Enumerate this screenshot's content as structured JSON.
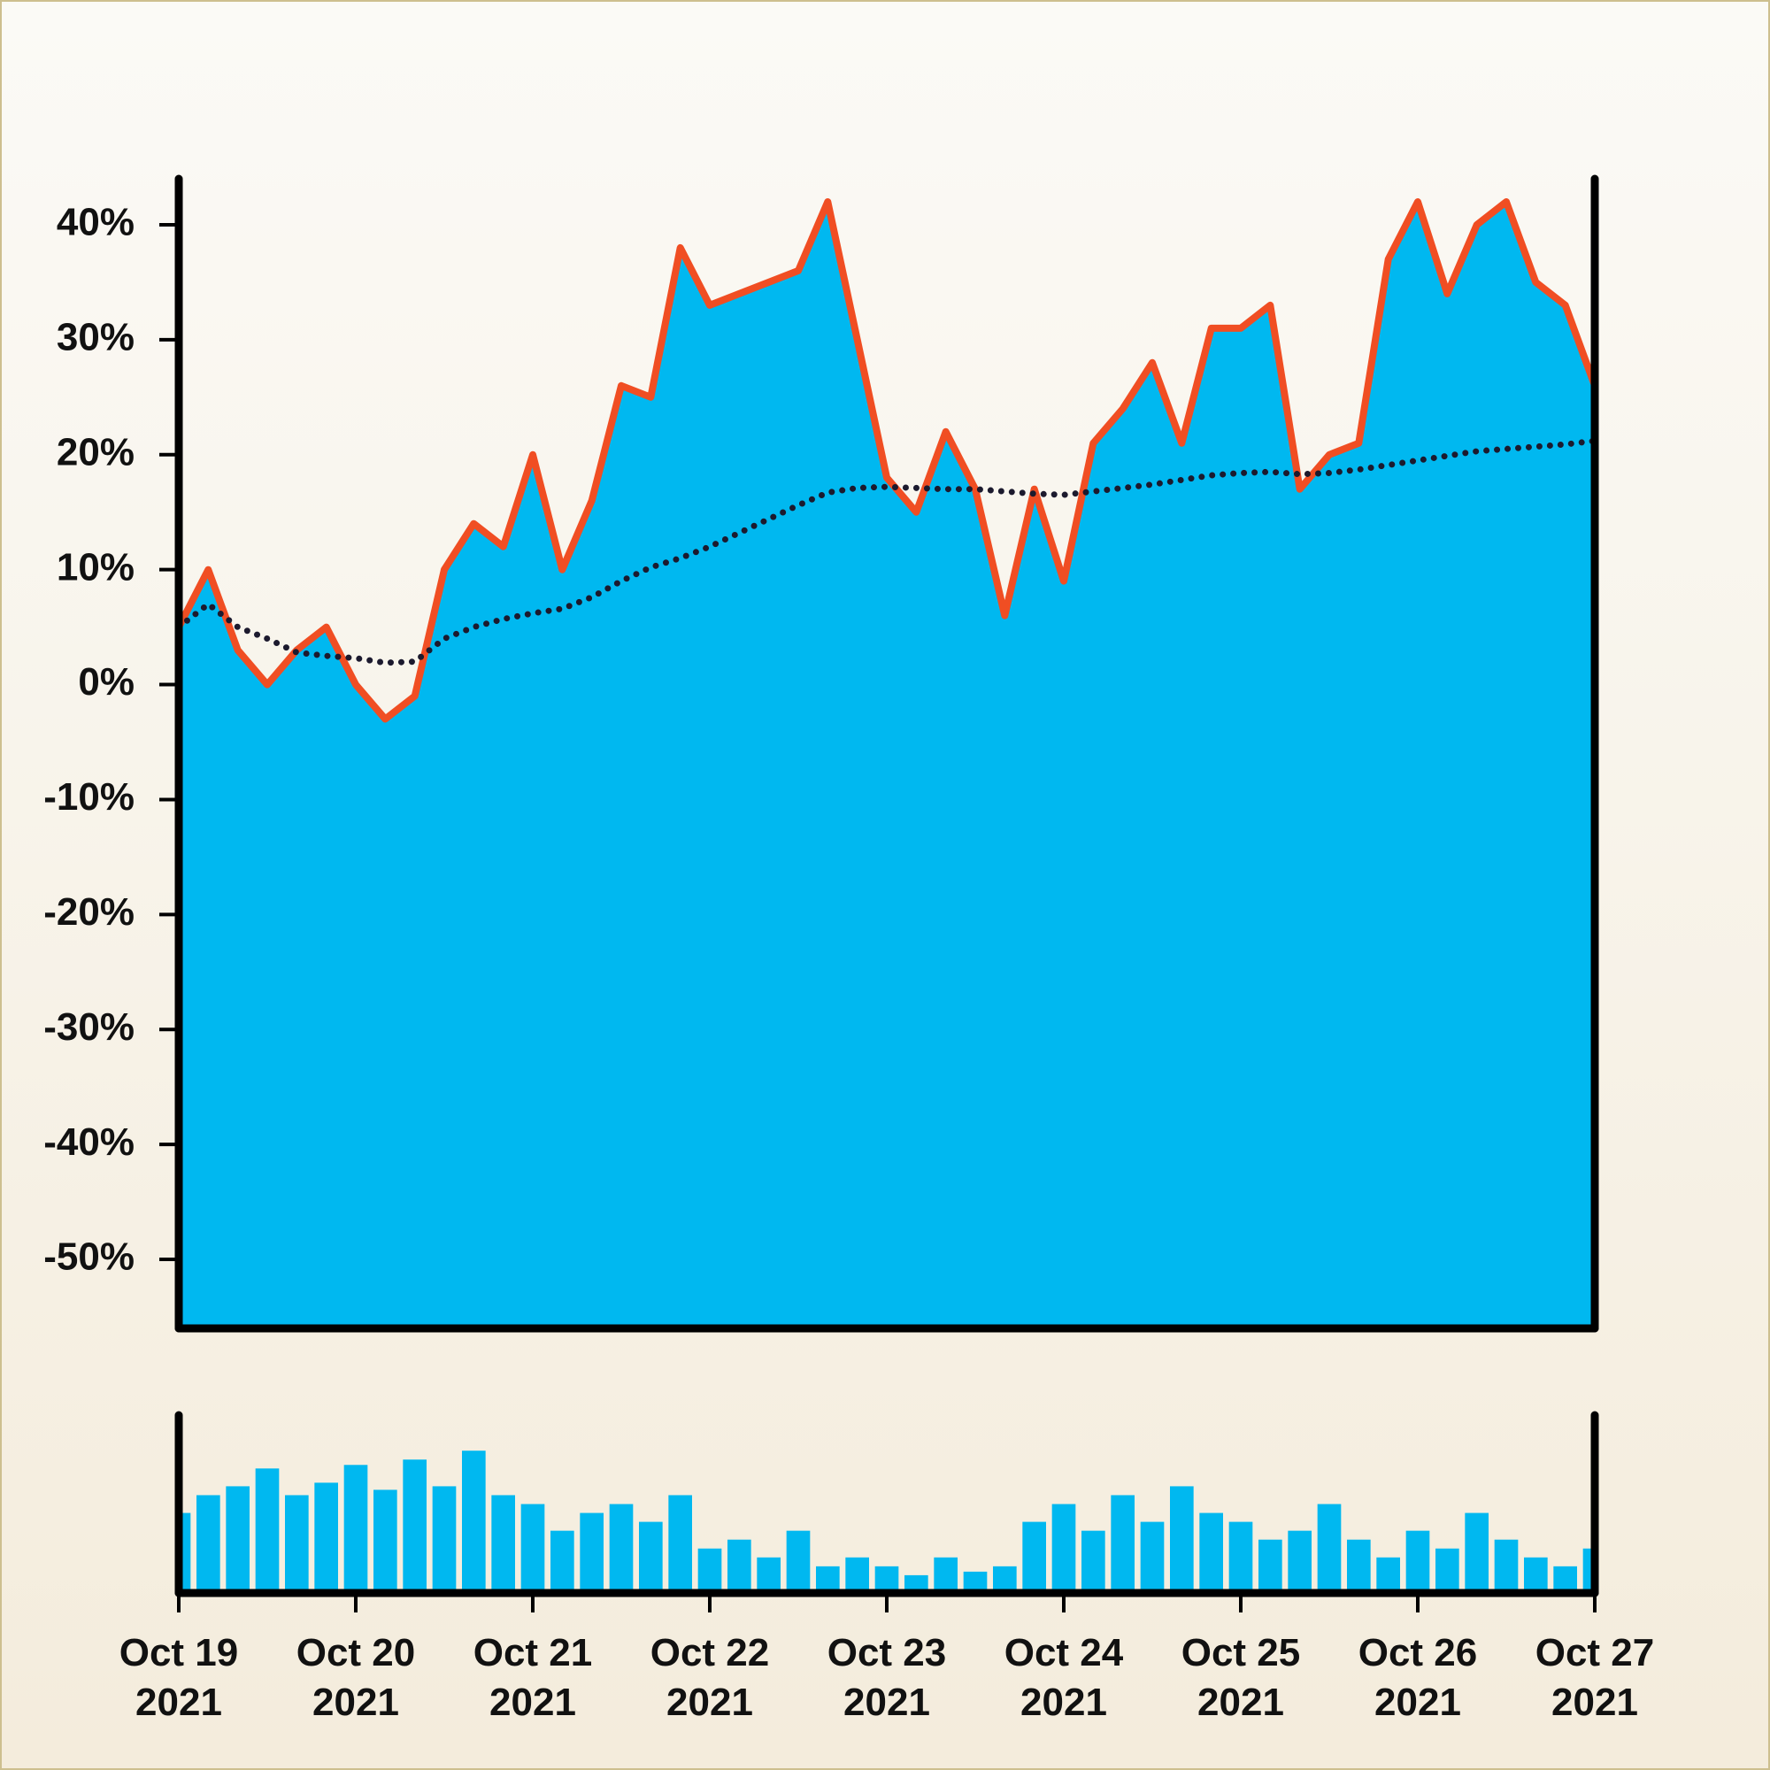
{
  "chart_data": [
    {
      "type": "area",
      "x": [
        "2021-10-19 00:00",
        "2021-10-19 04:00",
        "2021-10-19 08:00",
        "2021-10-19 12:00",
        "2021-10-19 16:00",
        "2021-10-19 20:00",
        "2021-10-20 00:00",
        "2021-10-20 04:00",
        "2021-10-20 08:00",
        "2021-10-20 12:00",
        "2021-10-20 16:00",
        "2021-10-20 20:00",
        "2021-10-21 00:00",
        "2021-10-21 04:00",
        "2021-10-21 08:00",
        "2021-10-21 12:00",
        "2021-10-21 16:00",
        "2021-10-21 20:00",
        "2021-10-22 00:00",
        "2021-10-22 04:00",
        "2021-10-22 08:00",
        "2021-10-22 12:00",
        "2021-10-22 16:00",
        "2021-10-22 20:00",
        "2021-10-23 00:00",
        "2021-10-23 04:00",
        "2021-10-23 08:00",
        "2021-10-23 12:00",
        "2021-10-23 16:00",
        "2021-10-23 20:00",
        "2021-10-24 00:00",
        "2021-10-24 04:00",
        "2021-10-24 08:00",
        "2021-10-24 12:00",
        "2021-10-24 16:00",
        "2021-10-24 20:00",
        "2021-10-25 00:00",
        "2021-10-25 04:00",
        "2021-10-25 08:00",
        "2021-10-25 12:00",
        "2021-10-25 16:00",
        "2021-10-25 20:00",
        "2021-10-26 00:00",
        "2021-10-26 04:00",
        "2021-10-26 08:00",
        "2021-10-26 12:00",
        "2021-10-26 16:00",
        "2021-10-26 20:00",
        "2021-10-27 00:00"
      ],
      "series": [
        {
          "type": "area",
          "color": "#f04e23",
          "fill": "#00b8f0",
          "values": [
            5,
            10,
            3,
            0,
            3,
            5,
            0,
            -3,
            -1,
            10,
            14,
            12,
            20,
            10,
            16,
            26,
            25,
            38,
            33,
            34,
            35,
            36,
            42,
            30,
            18,
            15,
            22,
            17,
            6,
            17,
            9,
            21,
            24,
            28,
            21,
            31,
            31,
            33,
            17,
            20,
            21,
            37,
            42,
            34,
            40,
            42,
            35,
            33,
            26
          ]
        },
        {
          "type": "line",
          "line_style": "dotted",
          "color": "#1c1a2e",
          "values": [
            5,
            7,
            5,
            4,
            2.8,
            2.5,
            2.3,
            1.9,
            2,
            4,
            5,
            5.7,
            6.2,
            6.6,
            7.6,
            9,
            10.2,
            11,
            12,
            13.2,
            14.4,
            15.6,
            16.7,
            17.1,
            17.2,
            17.1,
            17,
            17,
            16.8,
            16.6,
            16.5,
            16.8,
            17.1,
            17.4,
            17.8,
            18.2,
            18.4,
            18.5,
            18.3,
            18.4,
            18.7,
            19.1,
            19.5,
            19.9,
            20.3,
            20.5,
            20.7,
            20.9,
            21.2
          ]
        }
      ],
      "xlim": [
        "2021-10-19 00:00",
        "2021-10-27 00:00"
      ],
      "ylim": [
        -56,
        44
      ],
      "yticks": [
        {
          "value": -50,
          "label": "-50%"
        },
        {
          "value": -40,
          "label": "-40%"
        },
        {
          "value": -30,
          "label": "-30%"
        },
        {
          "value": -20,
          "label": "-20%"
        },
        {
          "value": -10,
          "label": "-10%"
        },
        {
          "value": 0,
          "label": "0%"
        },
        {
          "value": 10,
          "label": "10%"
        },
        {
          "value": 20,
          "label": "20%"
        },
        {
          "value": 30,
          "label": "30%"
        },
        {
          "value": 40,
          "label": "40%"
        }
      ]
    },
    {
      "type": "bar",
      "color": "#00b8f0",
      "x": [
        "2021-10-19 00:00",
        "2021-10-19 04:00",
        "2021-10-19 08:00",
        "2021-10-19 12:00",
        "2021-10-19 16:00",
        "2021-10-19 20:00",
        "2021-10-20 00:00",
        "2021-10-20 04:00",
        "2021-10-20 08:00",
        "2021-10-20 12:00",
        "2021-10-20 16:00",
        "2021-10-20 20:00",
        "2021-10-21 00:00",
        "2021-10-21 04:00",
        "2021-10-21 08:00",
        "2021-10-21 12:00",
        "2021-10-21 16:00",
        "2021-10-21 20:00",
        "2021-10-22 00:00",
        "2021-10-22 04:00",
        "2021-10-22 08:00",
        "2021-10-22 12:00",
        "2021-10-22 16:00",
        "2021-10-22 20:00",
        "2021-10-23 00:00",
        "2021-10-23 04:00",
        "2021-10-23 08:00",
        "2021-10-23 12:00",
        "2021-10-23 16:00",
        "2021-10-23 20:00",
        "2021-10-24 00:00",
        "2021-10-24 04:00",
        "2021-10-24 08:00",
        "2021-10-24 12:00",
        "2021-10-24 16:00",
        "2021-10-24 20:00",
        "2021-10-25 00:00",
        "2021-10-25 04:00",
        "2021-10-25 08:00",
        "2021-10-25 12:00",
        "2021-10-25 16:00",
        "2021-10-25 20:00",
        "2021-10-26 00:00",
        "2021-10-26 04:00",
        "2021-10-26 08:00",
        "2021-10-26 12:00",
        "2021-10-26 16:00",
        "2021-10-26 20:00",
        "2021-10-27 00:00"
      ],
      "values": [
        45,
        55,
        60,
        70,
        55,
        62,
        72,
        58,
        75,
        60,
        80,
        55,
        50,
        35,
        45,
        50,
        40,
        55,
        25,
        30,
        20,
        35,
        15,
        20,
        15,
        10,
        20,
        12,
        15,
        40,
        50,
        35,
        55,
        40,
        60,
        45,
        40,
        30,
        35,
        50,
        30,
        20,
        35,
        25,
        45,
        30,
        20,
        15,
        25
      ],
      "xlim": [
        "2021-10-19 00:00",
        "2021-10-27 00:00"
      ],
      "ylim": [
        0,
        100
      ],
      "xticks": [
        {
          "value": "2021-10-19 00:00",
          "label": "Oct 19 2021"
        },
        {
          "value": "2021-10-20 00:00",
          "label": "Oct 20 2021"
        },
        {
          "value": "2021-10-21 00:00",
          "label": "Oct 21 2021"
        },
        {
          "value": "2021-10-22 00:00",
          "label": "Oct 22 2021"
        },
        {
          "value": "2021-10-23 00:00",
          "label": "Oct 23 2021"
        },
        {
          "value": "2021-10-24 00:00",
          "label": "Oct 24 2021"
        },
        {
          "value": "2021-10-25 00:00",
          "label": "Oct 25 2021"
        },
        {
          "value": "2021-10-26 00:00",
          "label": "Oct 26 2021"
        },
        {
          "value": "2021-10-27 00:00",
          "label": "Oct 27 2021"
        }
      ]
    }
  ]
}
